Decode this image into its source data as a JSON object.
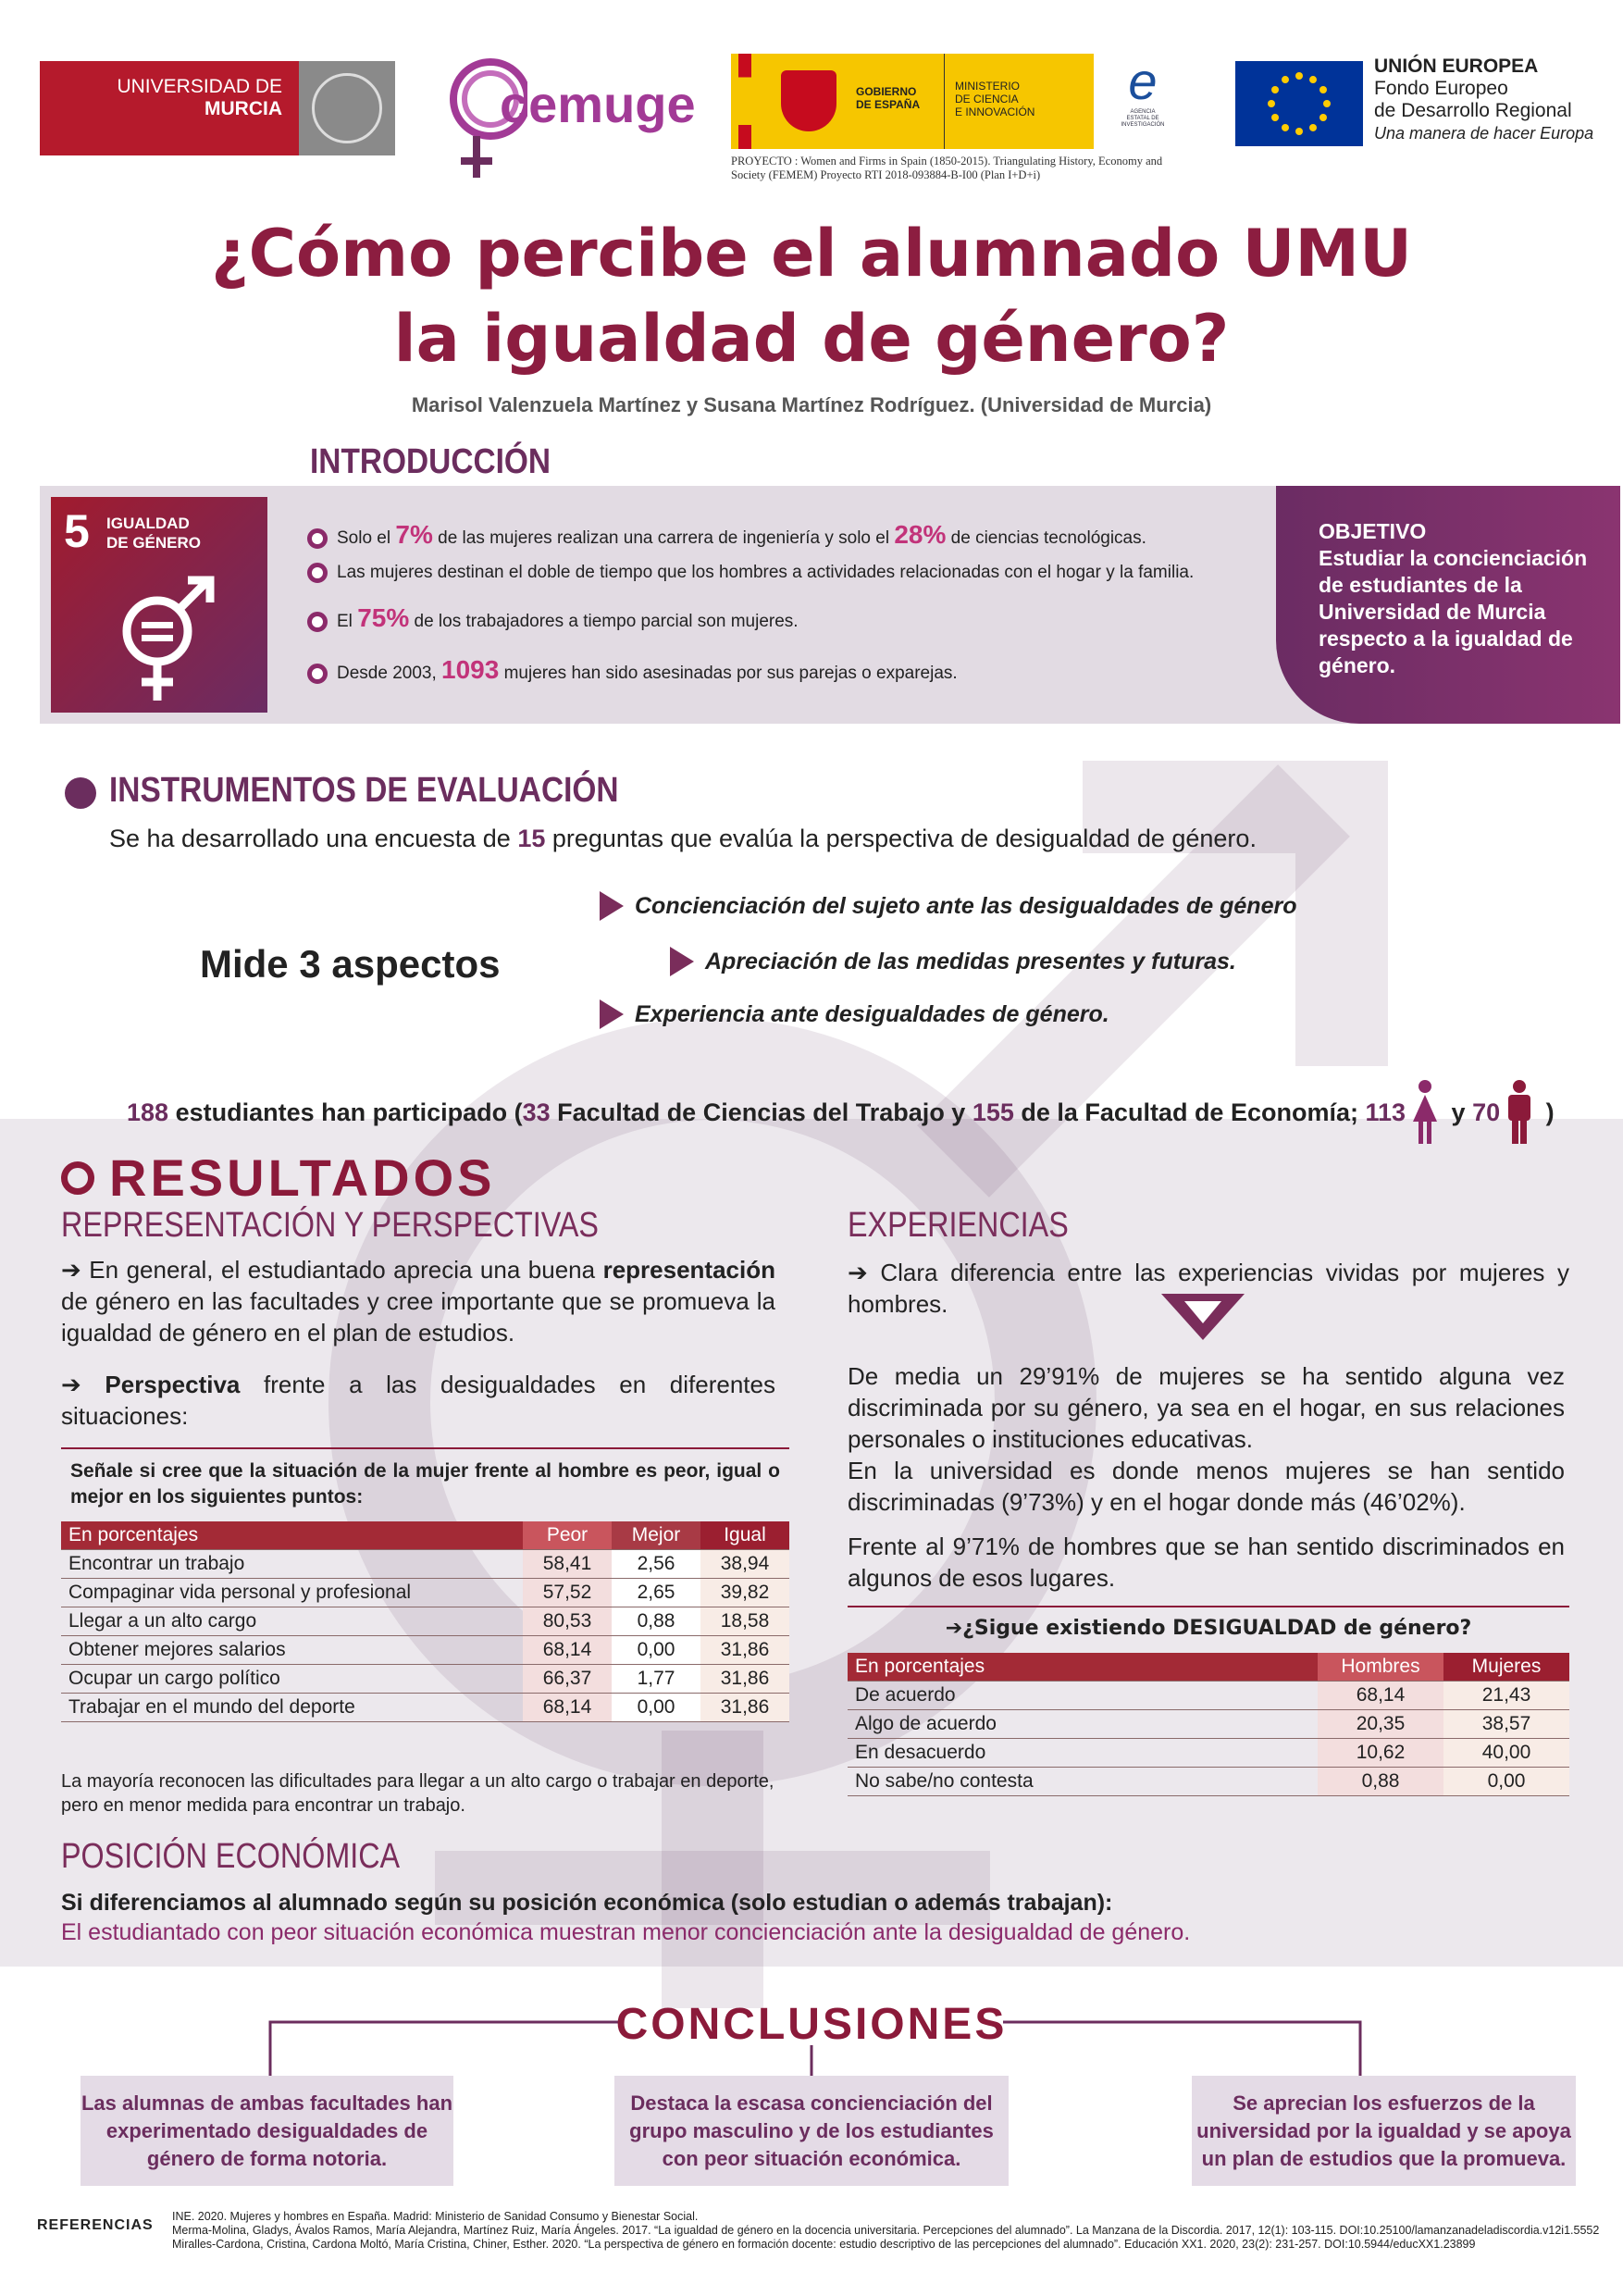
{
  "header": {
    "university_logo": [
      "UNIVERSIDAD DE",
      "MURCIA"
    ],
    "cemuge_logo": "cemuge",
    "government_logo": {
      "gobierno": [
        "GOBIERNO",
        "DE ESPAÑA"
      ],
      "ministerio": [
        "MINISTERIO",
        "DE CIENCIA",
        "E INNOVACIÓN"
      ],
      "agencia": [
        "AGENCIA",
        "ESTATAL DE",
        "INVESTIGACIÓN"
      ]
    },
    "project": [
      "PROYECTO :  Women and Firms in Spain (1850-2015). Triangulating History, Economy and",
      "Society (FEMEM) Proyecto RTI 2018-093884-B-I00 (Plan I+D+i)"
    ],
    "eu_logo": [
      "UNIÓN EUROPEA",
      "Fondo Europeo",
      "de Desarrollo Regional",
      "Una manera de hacer Europa"
    ]
  },
  "title": [
    "¿Cómo percibe el alumnado UMU",
    "la igualdad de género?"
  ],
  "authors": "Marisol Valenzuela Martínez y Susana Martínez Rodríguez.  (Universidad de Murcia)",
  "introduction": {
    "heading": "INTRODUCCIÓN",
    "sdg": {
      "number": "5",
      "label": [
        "IGUALDAD",
        "DE GÉNERO"
      ]
    },
    "facts": [
      [
        "Solo el ",
        "7%",
        " de las mujeres realizan una carrera de ingeniería y solo el ",
        "28%",
        " de ciencias tecnológicas."
      ],
      [
        "Las mujeres destinan el doble de tiempo que los hombres a actividades relacionadas con el hogar  y la familia."
      ],
      [
        "El ",
        "75%",
        " de los trabajadores a tiempo parcial son mujeres."
      ],
      [
        "Desde 2003, ",
        "1093",
        " mujeres han sido asesinadas por sus parejas o exparejas."
      ]
    ],
    "objective": {
      "heading": "OBJETIVO",
      "text": [
        "Estudiar la concienciación",
        "de estudiantes de la",
        "Universidad de Murcia",
        "respecto a la igualdad de",
        "género."
      ]
    }
  },
  "instruments": {
    "heading": "INSTRUMENTOS DE EVALUACIÓN",
    "survey": [
      "Se ha desarrollado una encuesta de ",
      "15",
      " preguntas que evalúa la perspectiva de desigualdad de género."
    ],
    "aspects_label": "Mide 3 aspectos",
    "aspects": [
      "Concienciación del sujeto ante las desigualdades de género",
      "Apreciación de las medidas presentes y futuras.",
      "Experiencia ante desigualdades de género."
    ],
    "participants": [
      "188",
      " estudiantes han participado (",
      "33",
      " Facultad de Ciencias del Trabajo y ",
      "155",
      " de la Facultad de Economía; ",
      "113",
      " y ",
      "70",
      " )"
    ]
  },
  "results": {
    "heading": "RESULTADOS",
    "representation": {
      "heading": "REPRESENTACIÓN Y PERSPECTIVAS",
      "paragraphs": [
        [
          "➔ En general, el estudiantado aprecia una buena ",
          "representación",
          " de género en las facultades y cree  importante que se promueva la igualdad de género en el plan de estudios."
        ],
        [
          "➔ ",
          "Perspectiva",
          " frente a las desigualdades en diferentes situaciones:"
        ]
      ],
      "table": {
        "question": "Señale si cree que la situación de la mujer frente al  hombre es peor, igual o mejor en los siguientes puntos:",
        "columns": [
          "En porcentajes",
          "Peor",
          "Mejor",
          "Igual"
        ],
        "rows": [
          [
            "Encontrar un trabajo",
            "58,41",
            "2,56",
            "38,94"
          ],
          [
            "Compaginar vida personal y profesional",
            "57,52",
            "2,65",
            "39,82"
          ],
          [
            "Llegar a un alto cargo",
            "80,53",
            "0,88",
            "18,58"
          ],
          [
            "Obtener mejores salarios",
            "68,14",
            "0,00",
            "31,86"
          ],
          [
            "Ocupar un cargo político",
            "66,37",
            "1,77",
            "31,86"
          ],
          [
            "Trabajar en el mundo del deporte",
            "68,14",
            "0,00",
            "31,86"
          ]
        ]
      },
      "note": "La mayoría reconocen las dificultades para llegar a un alto cargo o trabajar en deporte, pero en menor medida para encontrar un trabajo."
    },
    "economic": {
      "heading": "POSICIÓN ECONÓMICA",
      "lines": [
        "Si diferenciamos al alumnado según su posición económica (solo estudian o además trabajan):",
        "El estudiantado con peor situación económica muestran menor concienciación ante la desigualdad de género."
      ]
    },
    "experiences": {
      "heading": "EXPERIENCIAS",
      "intro": "➔ Clara diferencia entre las experiencias vividas por mujeres y hombres.",
      "paragraphs": [
        "De media un 29’91% de mujeres se ha sentido alguna vez discriminada por su género, ya sea en el hogar, en sus relaciones personales o instituciones educativas.",
        "En la universidad es donde menos mujeres se han sentido discriminadas (9’73%) y en el hogar donde más (46’02%).",
        "Frente al 9’71% de hombres que se han sentido discriminados en algunos de esos lugares."
      ],
      "table": {
        "question": "➔¿Sigue existiendo DESIGUALDAD de género?",
        "columns": [
          "En porcentajes",
          "Hombres",
          "Mujeres"
        ],
        "rows": [
          [
            "De acuerdo",
            "68,14",
            "21,43"
          ],
          [
            "Algo de acuerdo",
            "20,35",
            "38,57"
          ],
          [
            "En desacuerdo",
            "10,62",
            "40,00"
          ],
          [
            "No sabe/no contesta",
            "0,88",
            "0,00"
          ]
        ]
      }
    }
  },
  "conclusions": {
    "heading": "CONCLUSIONES",
    "items": [
      "Las alumnas de ambas facultades han experimentado desigualdades de género de forma notoria.",
      "Destaca la escasa concienciación del grupo masculino y de los estudiantes con peor situación económica.",
      "Se aprecian los esfuerzos de la universidad por la igualdad y se apoya un plan de estudios que la promueva."
    ]
  },
  "references": {
    "label": "REFERENCIAS",
    "items": [
      "INE. 2020. Mujeres y hombres en España. Madrid: Ministerio de Sanidad Consumo y Bienestar Social.",
      "Merma-Molina, Gladys, Ávalos Ramos, María Alejandra, Martínez Ruiz, María Ángeles. 2017. “La igualdad de género en la docencia universitaria. Percepciones del alumnado”. La Manzana de la Discordia. 2017, 12(1): 103-115. DOI:10.25100/lamanzanadeladiscordia.v12i1.5552",
      "Miralles-Cardona, Cristina, Cardona Moltó, María Cristina, Chiner, Esther. 2020. “La perspectiva de género en formación docente: estudio descriptivo de las percepciones del alumnado”. Educación XX1. 2020, 23(2): 231-257. DOI:10.5944/educXX1.23899"
    ]
  }
}
